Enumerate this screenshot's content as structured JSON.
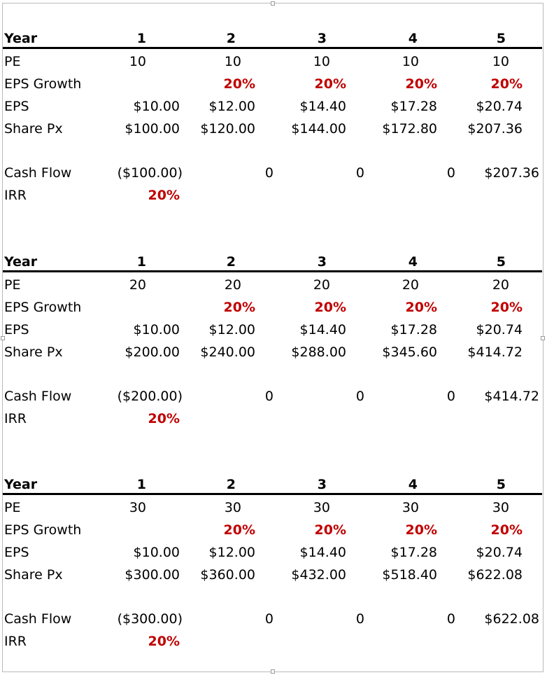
{
  "accent_color": "#c00000",
  "tables": [
    {
      "header": {
        "label": "Year",
        "years": [
          "1",
          "2",
          "3",
          "4",
          "5"
        ]
      },
      "pe": {
        "label": "PE",
        "values": [
          "10",
          "10",
          "10",
          "10",
          "10"
        ]
      },
      "eps_growth": {
        "label": "EPS Growth",
        "values": [
          "",
          "20%",
          "20%",
          "20%",
          "20%"
        ]
      },
      "eps": {
        "label": "EPS",
        "values": [
          "$10.00",
          "$12.00",
          "$14.40",
          "$17.28",
          "$20.74"
        ]
      },
      "share_px": {
        "label": "Share Px",
        "values": [
          "$100.00",
          "$120.00",
          "$144.00",
          "$172.80",
          "$207.36"
        ]
      },
      "cash_flow": {
        "label": "Cash Flow",
        "values": [
          "($100.00)",
          "0",
          "0",
          "0",
          "$207.36"
        ]
      },
      "irr": {
        "label": "IRR",
        "value": "20%"
      }
    },
    {
      "header": {
        "label": "Year",
        "years": [
          "1",
          "2",
          "3",
          "4",
          "5"
        ]
      },
      "pe": {
        "label": "PE",
        "values": [
          "20",
          "20",
          "20",
          "20",
          "20"
        ]
      },
      "eps_growth": {
        "label": "EPS Growth",
        "values": [
          "",
          "20%",
          "20%",
          "20%",
          "20%"
        ]
      },
      "eps": {
        "label": "EPS",
        "values": [
          "$10.00",
          "$12.00",
          "$14.40",
          "$17.28",
          "$20.74"
        ]
      },
      "share_px": {
        "label": "Share Px",
        "values": [
          "$200.00",
          "$240.00",
          "$288.00",
          "$345.60",
          "$414.72"
        ]
      },
      "cash_flow": {
        "label": "Cash Flow",
        "values": [
          "($200.00)",
          "0",
          "0",
          "0",
          "$414.72"
        ]
      },
      "irr": {
        "label": "IRR",
        "value": "20%"
      }
    },
    {
      "header": {
        "label": "Year",
        "years": [
          "1",
          "2",
          "3",
          "4",
          "5"
        ]
      },
      "pe": {
        "label": "PE",
        "values": [
          "30",
          "30",
          "30",
          "30",
          "30"
        ]
      },
      "eps_growth": {
        "label": "EPS Growth",
        "values": [
          "",
          "20%",
          "20%",
          "20%",
          "20%"
        ]
      },
      "eps": {
        "label": "EPS",
        "values": [
          "$10.00",
          "$12.00",
          "$14.40",
          "$17.28",
          "$20.74"
        ]
      },
      "share_px": {
        "label": "Share Px",
        "values": [
          "$300.00",
          "$360.00",
          "$432.00",
          "$518.40",
          "$622.08"
        ]
      },
      "cash_flow": {
        "label": "Cash Flow",
        "values": [
          "($300.00)",
          "0",
          "0",
          "0",
          "$622.08"
        ]
      },
      "irr": {
        "label": "IRR",
        "value": "20%"
      }
    }
  ]
}
